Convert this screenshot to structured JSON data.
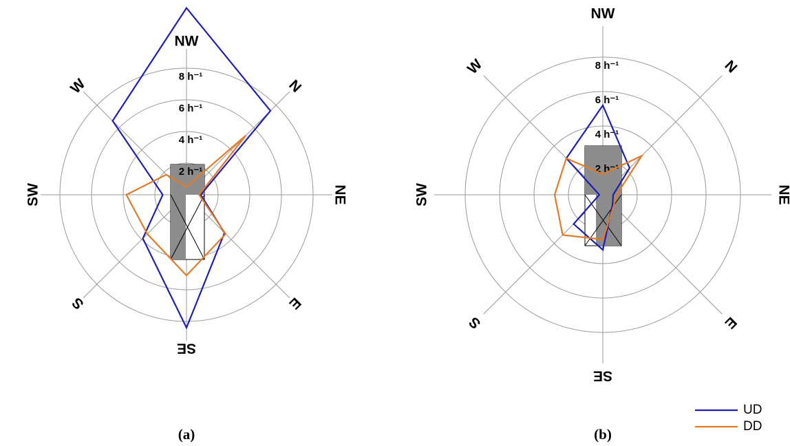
{
  "chart_data": [
    {
      "type": "radar",
      "label": "(a)",
      "categories": [
        "NW",
        "N",
        "NE",
        "E",
        "SE",
        "S",
        "SW",
        "W"
      ],
      "rlim": [
        0,
        8
      ],
      "rticks": [
        {
          "value": 2,
          "label": "2 h⁻¹"
        },
        {
          "value": 4,
          "label": "4 h⁻¹"
        },
        {
          "value": 6,
          "label": "6 h⁻¹"
        },
        {
          "value": 8,
          "label": "8 h⁻¹"
        }
      ],
      "series": [
        {
          "color": "#1f1fb4",
          "values": [
            11.8,
            7.5,
            0.9,
            3.4,
            8.4,
            3.9,
            1.5,
            6.6
          ]
        },
        {
          "color": "#e07b2a",
          "values": [
            0.5,
            5.3,
            0.8,
            3.5,
            5.1,
            3.5,
            3.8,
            1.8
          ]
        }
      ]
    },
    {
      "type": "radar",
      "label": "(b)",
      "categories": [
        "NW",
        "N",
        "NE",
        "E",
        "SE",
        "S",
        "SW",
        "W"
      ],
      "rlim": [
        0,
        8
      ],
      "rticks": [
        {
          "value": 2,
          "label": "2 h⁻¹"
        },
        {
          "value": 4,
          "label": "4 h⁻¹"
        },
        {
          "value": 6,
          "label": "6 h⁻¹"
        },
        {
          "value": 8,
          "label": "8 h⁻¹"
        }
      ],
      "legend": "lower right",
      "series": [
        {
          "name": "UD",
          "color": "#1f1fb4",
          "values": [
            5.2,
            2.2,
            0.6,
            0.8,
            3.2,
            2.4,
            0.2,
            3.0
          ]
        },
        {
          "name": "DD",
          "color": "#e07b2a",
          "values": [
            1.2,
            3.2,
            0.8,
            0.9,
            2.6,
            3.3,
            2.8,
            3.0
          ]
        }
      ]
    }
  ]
}
